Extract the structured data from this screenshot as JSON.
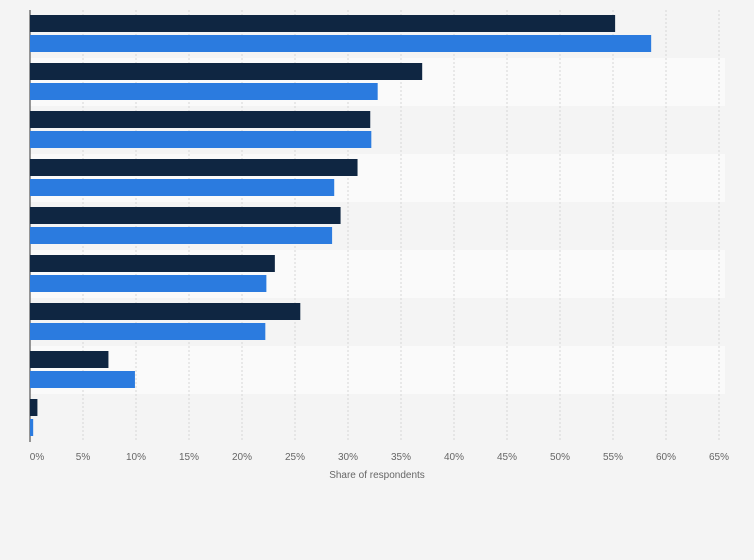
{
  "chart_data": {
    "type": "bar",
    "orientation": "horizontal",
    "categories": [
      "",
      "",
      "",
      "",
      "",
      "",
      "",
      "",
      ""
    ],
    "series": [
      {
        "color": "#0f2642",
        "values": [
          55.2,
          37.0,
          32.1,
          30.9,
          29.3,
          23.1,
          25.5,
          7.4,
          0.7
        ]
      },
      {
        "color": "#2b7bdf",
        "values": [
          58.6,
          32.8,
          32.2,
          28.7,
          28.5,
          22.3,
          22.2,
          9.9,
          0.3
        ]
      }
    ],
    "xlabel": "Share of respondents",
    "xlim": [
      0,
      65
    ],
    "xticks": [
      "0%",
      "5%",
      "10%",
      "15%",
      "20%",
      "25%",
      "30%",
      "35%",
      "40%",
      "45%",
      "50%",
      "55%",
      "60%",
      "65%"
    ],
    "grid": true,
    "legend": "none"
  }
}
